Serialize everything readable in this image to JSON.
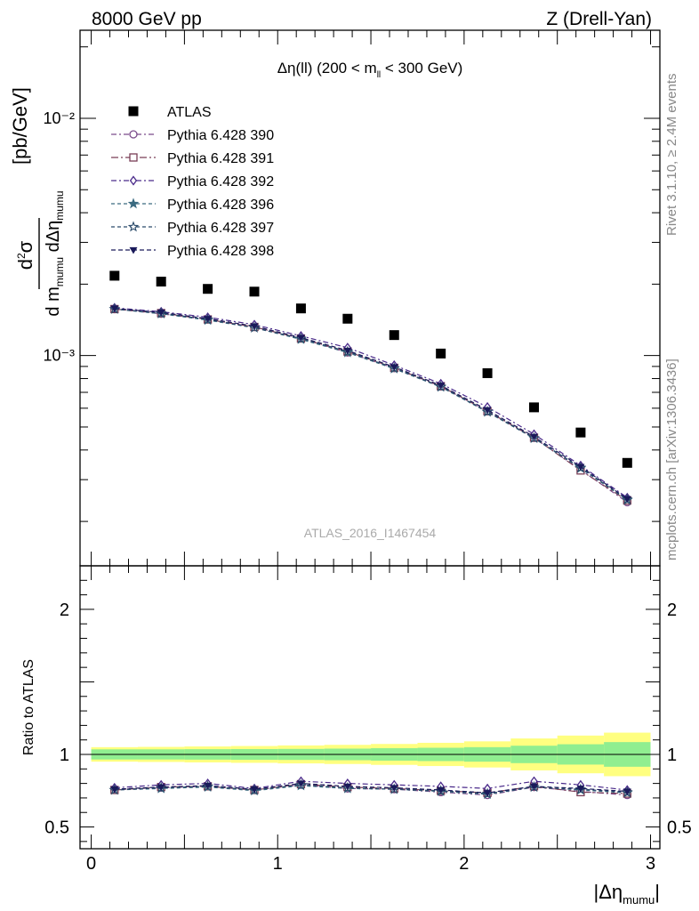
{
  "header": {
    "left": "8000 GeV pp",
    "right": "Z (Drell-Yan)"
  },
  "side_labels": {
    "rivet": "Rivet 3.1.10, ≥ 2.4M events",
    "mcplots": "mcplots.cern.ch [arXiv:1306.3436]"
  },
  "colors": {
    "atlas": "#000000",
    "p390": "#7a4a8a",
    "p391": "#7a3e56",
    "p392": "#4a2a8a",
    "p396": "#3a6a80",
    "p397": "#2a4a6a",
    "p398": "#1a1a5a",
    "band_inner": "#90ee90",
    "band_outer": "#ffff80"
  },
  "chart_data": [
    {
      "type": "scatter",
      "title": "Δη(ll) (200 < m_ll < 300 GeV)",
      "title_parts": {
        "pre": "Δη(ll) (200 < m",
        "sub": "ll",
        "post": " < 300 GeV)"
      },
      "ylabel": "d²σ / d m_mumu dΔη_mumu [pb/GeV]",
      "analysis_label": "ATLAS_2016_I1467454",
      "yscale": "log",
      "xlim": [
        -0.06,
        3.05
      ],
      "ylim": [
        0.00013,
        0.0235
      ],
      "ytick_labels": [
        "10⁻³",
        "10⁻²"
      ],
      "x": [
        0.125,
        0.375,
        0.625,
        0.875,
        1.125,
        1.375,
        1.625,
        1.875,
        2.125,
        2.375,
        2.625,
        2.875
      ],
      "series": [
        {
          "name": "ATLAS",
          "marker": "square",
          "values": [
            0.00217,
            0.00205,
            0.00191,
            0.00186,
            0.00158,
            0.00143,
            0.00122,
            0.00102,
            0.000843,
            0.000605,
            0.000474,
            0.000353
          ]
        },
        {
          "name": "Pythia 6.428 390",
          "marker": "circle",
          "values": [
            0.00157,
            0.0015,
            0.00142,
            0.00132,
            0.00118,
            0.00103,
            0.000885,
            0.000741,
            0.000582,
            0.00045,
            0.00033,
            0.000241
          ]
        },
        {
          "name": "Pythia 6.428 391",
          "marker": "square-open",
          "values": [
            0.00157,
            0.00151,
            0.00142,
            0.00132,
            0.00118,
            0.00104,
            0.000888,
            0.000743,
            0.000583,
            0.000451,
            0.000328,
            0.000245
          ]
        },
        {
          "name": "Pythia 6.428 392",
          "marker": "diamond",
          "values": [
            0.00159,
            0.00153,
            0.00145,
            0.00135,
            0.00121,
            0.00108,
            0.000911,
            0.000761,
            0.000607,
            0.000466,
            0.000344,
            0.000252
          ]
        },
        {
          "name": "Pythia 6.428 396",
          "marker": "star-filled",
          "values": [
            0.00157,
            0.0015,
            0.00141,
            0.00131,
            0.00117,
            0.00103,
            0.00088,
            0.000737,
            0.000578,
            0.000448,
            0.000335,
            0.000246
          ]
        },
        {
          "name": "Pythia 6.428 397",
          "marker": "star-open",
          "values": [
            0.00157,
            0.00151,
            0.00142,
            0.00131,
            0.00118,
            0.00104,
            0.000885,
            0.00074,
            0.000581,
            0.000449,
            0.000337,
            0.000248
          ]
        },
        {
          "name": "Pythia 6.428 398",
          "marker": "triangle-down",
          "values": [
            0.00158,
            0.00152,
            0.00143,
            0.00133,
            0.00119,
            0.00105,
            0.000895,
            0.000748,
            0.00059,
            0.000455,
            0.00034,
            0.000249
          ]
        }
      ]
    },
    {
      "type": "line",
      "ylabel": "Ratio to ATLAS",
      "xlabel": "|Δη_mumu|",
      "xlim": [
        -0.06,
        3.05
      ],
      "ylim": [
        0.35,
        2.3
      ],
      "xticks": [
        0,
        1,
        2,
        3
      ],
      "yticks": [
        0.5,
        1,
        2
      ],
      "x": [
        0.125,
        0.375,
        0.625,
        0.875,
        1.125,
        1.375,
        1.625,
        1.875,
        2.125,
        2.375,
        2.625,
        2.875
      ],
      "bands": {
        "edges": [
          0,
          0.25,
          0.5,
          0.75,
          1.0,
          1.25,
          1.5,
          1.75,
          2.0,
          2.25,
          2.5,
          2.75,
          3.0
        ],
        "inner_halfwidth": [
          0.035,
          0.035,
          0.036,
          0.037,
          0.038,
          0.04,
          0.043,
          0.046,
          0.05,
          0.06,
          0.07,
          0.085
        ],
        "outer_halfwidth": [
          0.05,
          0.052,
          0.055,
          0.058,
          0.062,
          0.066,
          0.072,
          0.08,
          0.09,
          0.11,
          0.13,
          0.15
        ]
      },
      "series": [
        {
          "name": "Pythia 6.428 390",
          "marker": "circle",
          "values": [
            0.76,
            0.77,
            0.78,
            0.755,
            0.79,
            0.765,
            0.76,
            0.74,
            0.72,
            0.775,
            0.745,
            0.72
          ]
        },
        {
          "name": "Pythia 6.428 391",
          "marker": "square-open",
          "values": [
            0.755,
            0.775,
            0.78,
            0.755,
            0.795,
            0.775,
            0.765,
            0.75,
            0.735,
            0.78,
            0.74,
            0.73
          ]
        },
        {
          "name": "Pythia 6.428 392",
          "marker": "diamond",
          "values": [
            0.77,
            0.79,
            0.8,
            0.765,
            0.815,
            0.8,
            0.79,
            0.78,
            0.765,
            0.815,
            0.79,
            0.755
          ]
        },
        {
          "name": "Pythia 6.428 396",
          "marker": "star-filled",
          "values": [
            0.755,
            0.765,
            0.775,
            0.75,
            0.785,
            0.765,
            0.76,
            0.745,
            0.725,
            0.775,
            0.755,
            0.735
          ]
        },
        {
          "name": "Pythia 6.428 397",
          "marker": "star-open",
          "values": [
            0.755,
            0.77,
            0.78,
            0.755,
            0.79,
            0.77,
            0.76,
            0.75,
            0.73,
            0.775,
            0.76,
            0.74
          ]
        },
        {
          "name": "Pythia 6.428 398",
          "marker": "triangle-down",
          "values": [
            0.76,
            0.775,
            0.785,
            0.76,
            0.8,
            0.78,
            0.77,
            0.755,
            0.735,
            0.78,
            0.765,
            0.745
          ]
        }
      ]
    }
  ]
}
